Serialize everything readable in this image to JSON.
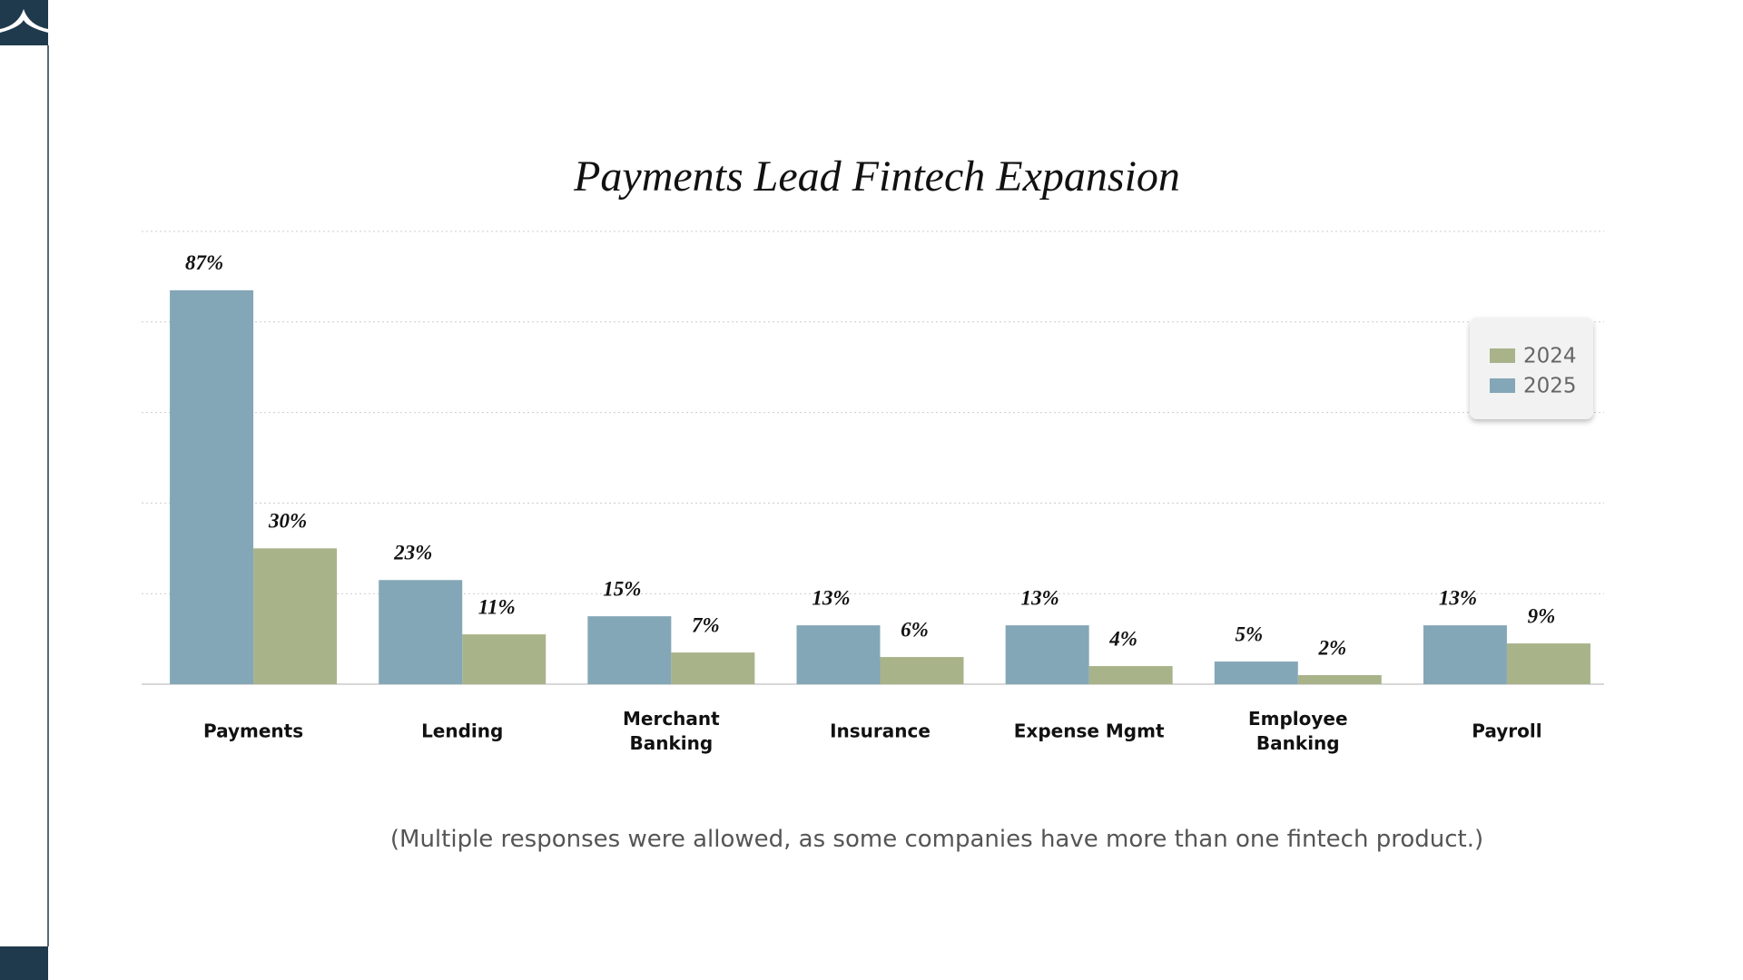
{
  "chart_data": {
    "type": "bar",
    "title": "Payments Lead Fintech Expansion",
    "categories": [
      "Payments",
      "Lending",
      "Merchant Banking",
      "Insurance",
      "Expense Mgmt",
      "Employee Banking",
      "Payroll"
    ],
    "series": [
      {
        "name": "2024",
        "color": "#a8b38a",
        "values": [
          30,
          11,
          7,
          6,
          4,
          2,
          9
        ],
        "value_labels": [
          "30%",
          "11%",
          "7%",
          "6%",
          "4%",
          "2%",
          "9%"
        ]
      },
      {
        "name": "2025",
        "color": "#84a7b7",
        "values": [
          87,
          23,
          15,
          13,
          13,
          5,
          13
        ],
        "value_labels": [
          "87%",
          "23%",
          "15%",
          "13%",
          "13%",
          "5%",
          "13%"
        ]
      }
    ],
    "ylim": [
      0,
      100
    ],
    "yticks": [
      0,
      20,
      40,
      60,
      80,
      100
    ],
    "grid": true,
    "legend": "upper right",
    "note": "(Multiple responses were allowed, as some companies have more than one fintech product.)"
  }
}
